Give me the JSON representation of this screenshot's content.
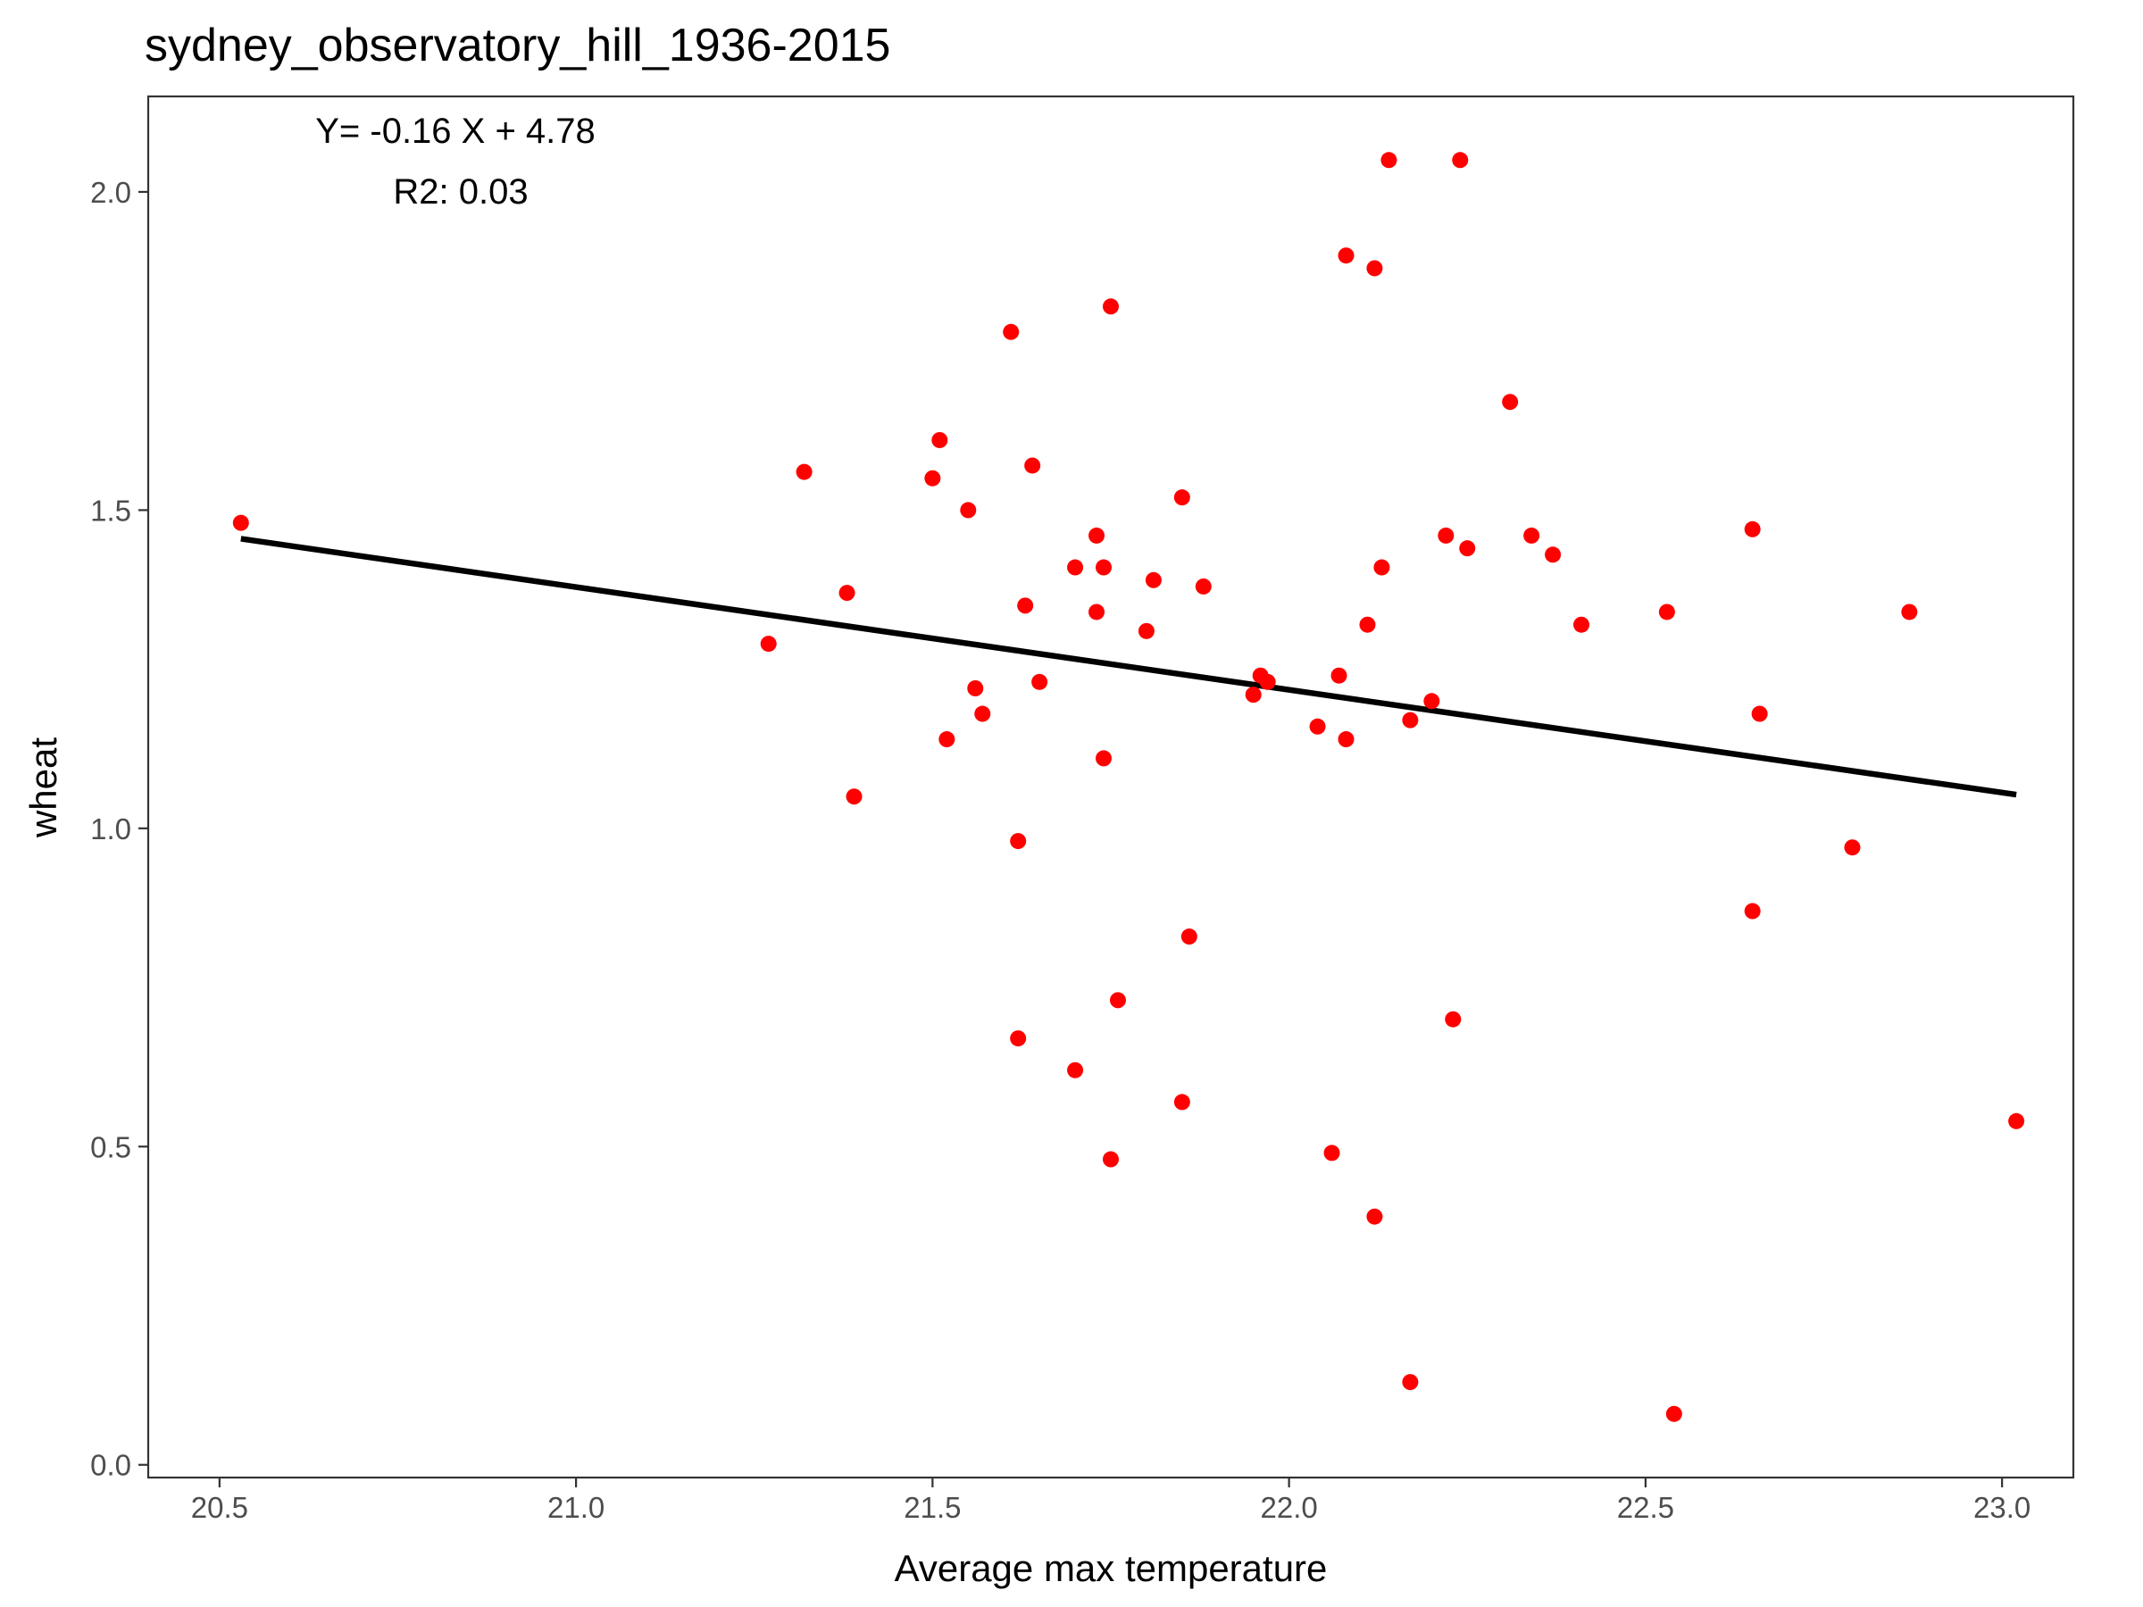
{
  "chart_data": {
    "type": "scatter",
    "title": "sydney_observatory_hill_1936-2015",
    "xlabel": "Average max temperature",
    "ylabel": "wheat",
    "xlim": [
      20.4,
      23.1
    ],
    "ylim": [
      -0.02,
      2.15
    ],
    "xticks": [
      20.5,
      21.0,
      21.5,
      22.0,
      22.5,
      23.0
    ],
    "yticks": [
      0.0,
      0.5,
      1.0,
      1.5,
      2.0
    ],
    "xtick_labels": [
      "20.5",
      "21.0",
      "21.5",
      "22.0",
      "22.5",
      "23.0"
    ],
    "ytick_labels": [
      "0.0",
      "0.5",
      "1.0",
      "1.5",
      "2.0"
    ],
    "grid": false,
    "point_color": "#ff0000",
    "line_color": "#000000",
    "annotations": {
      "equation": "Y= -0.16 X + 4.78",
      "r2": "R2: 0.03"
    },
    "regression": {
      "x": [
        20.53,
        23.02
      ],
      "y": [
        1.455,
        1.053
      ]
    },
    "series": [
      {
        "x": [
          20.53,
          21.27,
          21.32,
          21.38,
          21.39,
          21.5,
          21.51,
          21.52,
          21.55,
          21.56,
          21.57,
          21.61,
          21.62,
          21.62,
          21.63,
          21.64,
          21.65,
          21.7,
          21.7,
          21.73,
          21.73,
          21.74,
          21.74,
          21.75,
          21.75,
          21.76,
          21.8,
          21.81,
          21.85,
          21.85,
          21.86,
          21.88,
          21.95,
          21.96,
          21.97,
          22.04,
          22.06,
          22.07,
          22.08,
          22.08,
          22.11,
          22.12,
          22.12,
          22.13,
          22.14,
          22.17,
          22.17,
          22.2,
          22.22,
          22.23,
          22.24,
          22.25,
          22.31,
          22.34,
          22.37,
          22.41,
          22.53,
          22.54,
          22.65,
          22.65,
          22.66,
          22.79,
          22.87,
          23.02
        ],
        "y": [
          1.48,
          1.29,
          1.56,
          1.37,
          1.05,
          1.55,
          1.61,
          1.14,
          1.5,
          1.22,
          1.18,
          1.78,
          0.67,
          0.98,
          1.35,
          1.57,
          1.23,
          1.41,
          0.62,
          1.34,
          1.46,
          1.41,
          1.11,
          1.82,
          0.48,
          0.73,
          1.31,
          1.39,
          1.52,
          0.57,
          0.83,
          1.38,
          1.21,
          1.24,
          1.23,
          1.16,
          0.49,
          1.24,
          1.14,
          1.9,
          1.32,
          0.39,
          1.88,
          1.41,
          2.05,
          1.17,
          0.13,
          1.2,
          1.46,
          0.7,
          2.05,
          1.44,
          1.67,
          1.46,
          1.43,
          1.32,
          1.34,
          0.08,
          1.47,
          0.87,
          1.18,
          0.97,
          1.34,
          0.54
        ]
      }
    ]
  }
}
